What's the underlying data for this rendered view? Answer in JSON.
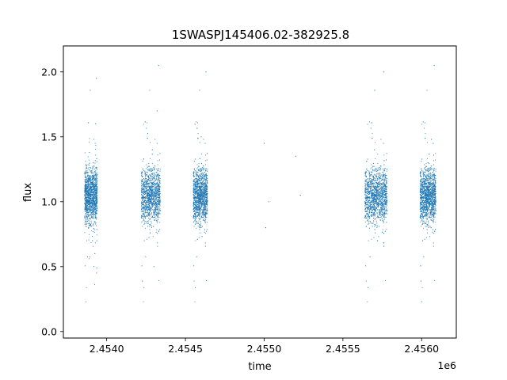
{
  "chart_data": {
    "type": "scatter",
    "title": "1SWASPJ145406.02-382925.8",
    "xlabel": "time",
    "ylabel": "flux",
    "x_offset_label": "1e6",
    "xlim": [
      2453725,
      2456220
    ],
    "ylim": [
      -0.05,
      2.2
    ],
    "x_ticks": [
      2.454,
      2.4545,
      2.455,
      2.4555,
      2.456
    ],
    "x_tick_labels": [
      "2.4540",
      "2.4545",
      "2.4550",
      "2.4555",
      "2.4560"
    ],
    "y_ticks": [
      0.0,
      0.5,
      1.0,
      1.5,
      2.0
    ],
    "y_tick_labels": [
      "0.0",
      "0.5",
      "1.0",
      "1.5",
      "2.0"
    ],
    "marker_color": "#1f77b4",
    "grid": false,
    "series": [
      {
        "x": [
          2453870,
          2453875,
          2453880,
          2453885,
          2453890,
          2453895,
          2453900,
          2453905,
          2453910,
          2453915,
          2453920,
          2453925,
          2453930,
          2453935,
          2454240,
          2454250,
          2454260,
          2454270,
          2454280,
          2454290,
          2454300,
          2454310,
          2454320,
          2454330,
          2454570,
          2454580,
          2454590,
          2454600,
          2454610,
          2454620,
          2454630,
          2455000,
          2455010,
          2455030,
          2455200,
          2455230,
          2455640,
          2455660,
          2455680,
          2455700,
          2455720,
          2455740,
          2455760,
          2456000,
          2456020,
          2456040,
          2456060,
          2456080
        ],
        "y": [
          1.05,
          0.95,
          1.2,
          0.8,
          1.1,
          1.0,
          0.9,
          1.15,
          0.7,
          1.3,
          1.0,
          0.6,
          1.6,
          1.95,
          1.0,
          1.1,
          0.85,
          1.25,
          0.95,
          1.4,
          0.5,
          1.05,
          1.7,
          2.05,
          1.0,
          1.2,
          0.8,
          1.5,
          0.9,
          1.1,
          2.0,
          1.45,
          0.8,
          1.0,
          1.35,
          1.05,
          1.0,
          1.15,
          0.9,
          1.4,
          0.7,
          1.1,
          2.0,
          1.05,
          0.9,
          1.3,
          0.8,
          2.05
        ]
      }
    ]
  }
}
